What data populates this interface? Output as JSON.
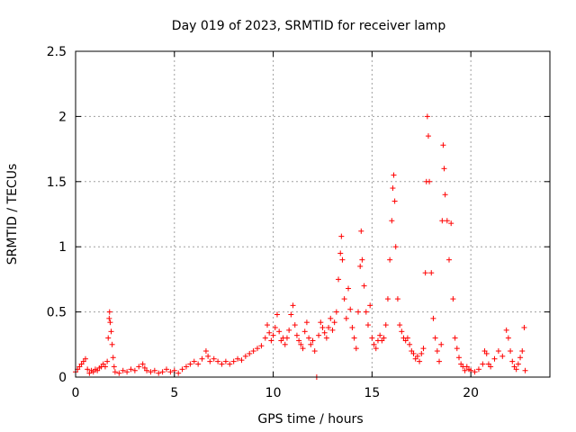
{
  "chart_data": {
    "type": "scatter",
    "title": "Day 019 of 2023, SRMTID for receiver lamp",
    "xlabel": "GPS time / hours",
    "ylabel": "SRMTID / TECUs",
    "xlim": [
      0,
      24
    ],
    "ylim": [
      0,
      2.5
    ],
    "xticks": [
      0,
      5,
      10,
      15,
      20
    ],
    "yticks": [
      0,
      0.5,
      1,
      1.5,
      2,
      2.5
    ],
    "xtick_labels": [
      "0",
      "5",
      "10",
      "15",
      "20"
    ],
    "ytick_labels": [
      "0",
      "0.5",
      "1",
      "1.5",
      "2",
      "2.5"
    ],
    "grid": true,
    "marker": "plus",
    "series": [
      {
        "name": "SRMTID",
        "color": "#ff0000",
        "points": [
          [
            0.0,
            0.04
          ],
          [
            0.1,
            0.06
          ],
          [
            0.2,
            0.08
          ],
          [
            0.3,
            0.1
          ],
          [
            0.4,
            0.12
          ],
          [
            0.5,
            0.14
          ],
          [
            0.6,
            0.06
          ],
          [
            0.7,
            0.03
          ],
          [
            0.8,
            0.05
          ],
          [
            0.9,
            0.04
          ],
          [
            1.0,
            0.06
          ],
          [
            1.1,
            0.05
          ],
          [
            1.2,
            0.07
          ],
          [
            1.3,
            0.08
          ],
          [
            1.4,
            0.1
          ],
          [
            1.5,
            0.08
          ],
          [
            1.6,
            0.12
          ],
          [
            1.65,
            0.3
          ],
          [
            1.7,
            0.45
          ],
          [
            1.72,
            0.5
          ],
          [
            1.75,
            0.42
          ],
          [
            1.8,
            0.35
          ],
          [
            1.85,
            0.25
          ],
          [
            1.9,
            0.15
          ],
          [
            1.95,
            0.08
          ],
          [
            2.0,
            0.04
          ],
          [
            2.2,
            0.03
          ],
          [
            2.4,
            0.05
          ],
          [
            2.6,
            0.04
          ],
          [
            2.8,
            0.06
          ],
          [
            3.0,
            0.05
          ],
          [
            3.2,
            0.08
          ],
          [
            3.4,
            0.1
          ],
          [
            3.5,
            0.07
          ],
          [
            3.6,
            0.05
          ],
          [
            3.8,
            0.04
          ],
          [
            4.0,
            0.05
          ],
          [
            4.2,
            0.03
          ],
          [
            4.4,
            0.04
          ],
          [
            4.6,
            0.06
          ],
          [
            4.8,
            0.04
          ],
          [
            5.0,
            0.05
          ],
          [
            5.2,
            0.03
          ],
          [
            5.4,
            0.06
          ],
          [
            5.6,
            0.08
          ],
          [
            5.8,
            0.1
          ],
          [
            6.0,
            0.12
          ],
          [
            6.2,
            0.1
          ],
          [
            6.4,
            0.14
          ],
          [
            6.6,
            0.2
          ],
          [
            6.7,
            0.16
          ],
          [
            6.8,
            0.12
          ],
          [
            7.0,
            0.14
          ],
          [
            7.2,
            0.12
          ],
          [
            7.4,
            0.1
          ],
          [
            7.6,
            0.12
          ],
          [
            7.8,
            0.1
          ],
          [
            8.0,
            0.12
          ],
          [
            8.2,
            0.14
          ],
          [
            8.4,
            0.13
          ],
          [
            8.6,
            0.16
          ],
          [
            8.8,
            0.18
          ],
          [
            9.0,
            0.2
          ],
          [
            9.2,
            0.22
          ],
          [
            9.4,
            0.24
          ],
          [
            9.6,
            0.3
          ],
          [
            9.7,
            0.4
          ],
          [
            9.8,
            0.34
          ],
          [
            9.9,
            0.28
          ],
          [
            10.0,
            0.32
          ],
          [
            10.1,
            0.38
          ],
          [
            10.2,
            0.48
          ],
          [
            10.3,
            0.35
          ],
          [
            10.4,
            0.28
          ],
          [
            10.5,
            0.3
          ],
          [
            10.6,
            0.25
          ],
          [
            10.7,
            0.3
          ],
          [
            10.8,
            0.36
          ],
          [
            10.9,
            0.48
          ],
          [
            11.0,
            0.55
          ],
          [
            11.1,
            0.4
          ],
          [
            11.2,
            0.32
          ],
          [
            11.3,
            0.28
          ],
          [
            11.4,
            0.25
          ],
          [
            11.5,
            0.22
          ],
          [
            11.6,
            0.35
          ],
          [
            11.7,
            0.42
          ],
          [
            11.8,
            0.3
          ],
          [
            11.9,
            0.25
          ],
          [
            12.0,
            0.28
          ],
          [
            12.1,
            0.2
          ],
          [
            12.2,
            0.0
          ],
          [
            12.3,
            0.32
          ],
          [
            12.4,
            0.42
          ],
          [
            12.5,
            0.38
          ],
          [
            12.6,
            0.34
          ],
          [
            12.7,
            0.3
          ],
          [
            12.8,
            0.38
          ],
          [
            12.9,
            0.45
          ],
          [
            13.0,
            0.36
          ],
          [
            13.1,
            0.42
          ],
          [
            13.2,
            0.5
          ],
          [
            13.3,
            0.75
          ],
          [
            13.4,
            0.95
          ],
          [
            13.45,
            1.08
          ],
          [
            13.5,
            0.9
          ],
          [
            13.6,
            0.6
          ],
          [
            13.7,
            0.45
          ],
          [
            13.8,
            0.68
          ],
          [
            13.9,
            0.52
          ],
          [
            14.0,
            0.38
          ],
          [
            14.1,
            0.3
          ],
          [
            14.2,
            0.22
          ],
          [
            14.3,
            0.5
          ],
          [
            14.4,
            0.85
          ],
          [
            14.45,
            1.12
          ],
          [
            14.5,
            0.9
          ],
          [
            14.6,
            0.7
          ],
          [
            14.7,
            0.5
          ],
          [
            14.8,
            0.4
          ],
          [
            14.9,
            0.55
          ],
          [
            15.0,
            0.3
          ],
          [
            15.1,
            0.25
          ],
          [
            15.2,
            0.22
          ],
          [
            15.3,
            0.28
          ],
          [
            15.4,
            0.32
          ],
          [
            15.5,
            0.28
          ],
          [
            15.6,
            0.3
          ],
          [
            15.7,
            0.4
          ],
          [
            15.8,
            0.6
          ],
          [
            15.9,
            0.9
          ],
          [
            16.0,
            1.2
          ],
          [
            16.05,
            1.45
          ],
          [
            16.1,
            1.55
          ],
          [
            16.15,
            1.35
          ],
          [
            16.2,
            1.0
          ],
          [
            16.3,
            0.6
          ],
          [
            16.4,
            0.4
          ],
          [
            16.5,
            0.35
          ],
          [
            16.6,
            0.3
          ],
          [
            16.7,
            0.28
          ],
          [
            16.8,
            0.3
          ],
          [
            16.9,
            0.25
          ],
          [
            17.0,
            0.2
          ],
          [
            17.1,
            0.18
          ],
          [
            17.2,
            0.14
          ],
          [
            17.3,
            0.16
          ],
          [
            17.4,
            0.12
          ],
          [
            17.5,
            0.18
          ],
          [
            17.6,
            0.22
          ],
          [
            17.7,
            0.8
          ],
          [
            17.75,
            1.5
          ],
          [
            17.8,
            2.0
          ],
          [
            17.85,
            1.85
          ],
          [
            17.9,
            1.5
          ],
          [
            18.0,
            0.8
          ],
          [
            18.1,
            0.45
          ],
          [
            18.2,
            0.3
          ],
          [
            18.3,
            0.2
          ],
          [
            18.4,
            0.12
          ],
          [
            18.5,
            0.25
          ],
          [
            18.55,
            1.2
          ],
          [
            18.6,
            1.78
          ],
          [
            18.65,
            1.6
          ],
          [
            18.7,
            1.4
          ],
          [
            18.8,
            1.2
          ],
          [
            18.9,
            0.9
          ],
          [
            19.0,
            1.18
          ],
          [
            19.1,
            0.6
          ],
          [
            19.2,
            0.3
          ],
          [
            19.3,
            0.22
          ],
          [
            19.4,
            0.15
          ],
          [
            19.5,
            0.1
          ],
          [
            19.6,
            0.08
          ],
          [
            19.7,
            0.05
          ],
          [
            19.8,
            0.08
          ],
          [
            19.9,
            0.06
          ],
          [
            20.0,
            0.05
          ],
          [
            20.2,
            0.04
          ],
          [
            20.4,
            0.06
          ],
          [
            20.6,
            0.1
          ],
          [
            20.7,
            0.2
          ],
          [
            20.8,
            0.18
          ],
          [
            20.9,
            0.1
          ],
          [
            21.0,
            0.08
          ],
          [
            21.2,
            0.14
          ],
          [
            21.4,
            0.2
          ],
          [
            21.6,
            0.16
          ],
          [
            21.8,
            0.36
          ],
          [
            21.9,
            0.3
          ],
          [
            22.0,
            0.2
          ],
          [
            22.1,
            0.12
          ],
          [
            22.2,
            0.08
          ],
          [
            22.3,
            0.06
          ],
          [
            22.4,
            0.1
          ],
          [
            22.5,
            0.15
          ],
          [
            22.6,
            0.2
          ],
          [
            22.7,
            0.38
          ],
          [
            22.75,
            0.05
          ]
        ]
      }
    ]
  }
}
